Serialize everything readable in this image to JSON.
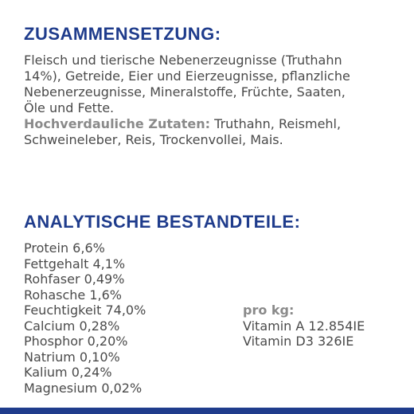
{
  "composition": {
    "title": "ZUSAMMENSETZUNG:",
    "lines": [
      "Fleisch und tierische Nebenerzeugnisse (Truthahn",
      "14%), Getreide, Eier und Eierzeugnisse, pflanzliche",
      "Nebenerzeugnisse, Mineralstoffe, Früchte, Saaten,",
      "Öle und Fette."
    ],
    "digestible_label": "Hochverdauliche Zutaten:",
    "digestible_text_1": " Truthahn, Reismehl,",
    "digestible_text_2": "Schweineleber, Reis, Trockenvollei, Mais."
  },
  "analytical": {
    "title": "ANALYTISCHE BESTANDTEILE:",
    "items": [
      "Protein 6,6%",
      "Fettgehalt 4,1%",
      "Rohfaser 0,49%",
      "Rohasche 1,6%",
      "Feuchtigkeit 74,0%",
      "Calcium 0,28%",
      "Phosphor 0,20%",
      "Natrium 0,10%",
      "Kalium 0,24%",
      "Magnesium 0,02%"
    ],
    "per_kg_label": "pro kg:",
    "per_kg_items": [
      "Vitamin A 12.854IE",
      "Vitamin D3 326IE"
    ]
  },
  "colors": {
    "heading": "#1f3c8c",
    "text": "#4a4a4a",
    "label": "#8a8a8a",
    "bar": "#1f3c8c"
  }
}
